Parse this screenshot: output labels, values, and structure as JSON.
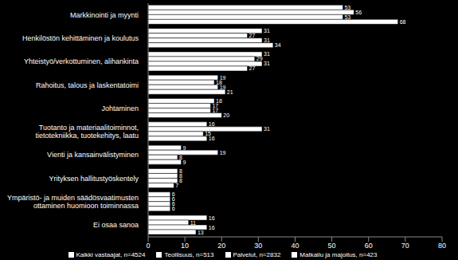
{
  "chart_data": {
    "type": "bar",
    "orientation": "horizontal",
    "data_labels": true,
    "grid": false,
    "legend": "bottom",
    "categories": [
      "Markkinointi ja myynti",
      "Henkilöstön kehittäminen ja koulutus",
      "Yhteistyö/verkottuminen, alihankinta",
      "Rahoitus, talous ja laskentatoimi",
      "Johtaminen",
      "Tuotanto ja materiaalitoiminnot, tietotekniikka, tuotekehitys, laatu",
      "Vienti ja kansainvälistyminen",
      "Yrityksen hallitustyöskentely",
      "Ympäristö- ja muiden säädösvaatimusten ottaminen huomioon toiminnassa",
      "Ei osaa sanoa"
    ],
    "series": [
      {
        "name": "Kaikki vastaajat, n=4524",
        "color": "#ffffff",
        "values": [
          53,
          31,
          31,
          19,
          18,
          16,
          9,
          8,
          6,
          16
        ]
      },
      {
        "name": "Teollisuus, n=513",
        "color": "#ffffff",
        "values": [
          56,
          27,
          29,
          18,
          17,
          31,
          19,
          8,
          6,
          11
        ]
      },
      {
        "name": "Palvelut, n=2832",
        "color": "#ffffff",
        "values": [
          53,
          31,
          31,
          19,
          17,
          15,
          8,
          8,
          6,
          16
        ]
      },
      {
        "name": "Matkailu ja majoitus, n=423",
        "color": "#ffffff",
        "values": [
          68,
          34,
          27,
          21,
          20,
          16,
          9,
          7,
          6,
          13
        ]
      }
    ],
    "xlim": [
      0,
      80
    ],
    "xticks": [
      0,
      10,
      20,
      30,
      40,
      50,
      60,
      70,
      80
    ]
  }
}
